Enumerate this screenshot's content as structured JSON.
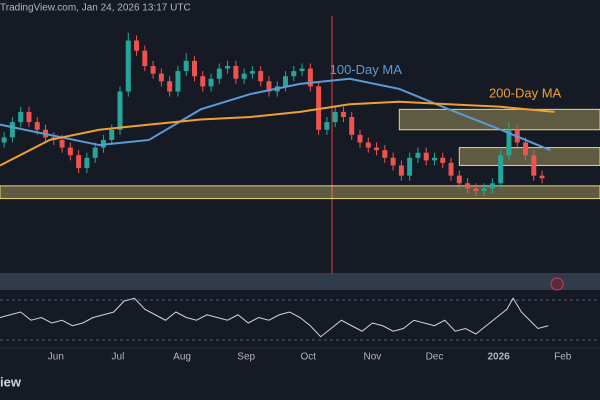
{
  "chart_data": {
    "type": "candlestick",
    "source": "TradingView.com, Jan 24, 2026 13:17 UTC",
    "brand": "iew",
    "xlim": [
      0,
      290
    ],
    "ylim": [
      0,
      100
    ],
    "xticks": [
      {
        "value": 27,
        "label": "Jun"
      },
      {
        "value": 57,
        "label": "Jul"
      },
      {
        "value": 88,
        "label": "Aug"
      },
      {
        "value": 119,
        "label": "Sep"
      },
      {
        "value": 149,
        "label": "Oct"
      },
      {
        "value": 180,
        "label": "Nov"
      },
      {
        "value": 210,
        "label": "Dec"
      },
      {
        "value": 241,
        "label": "2026"
      },
      {
        "value": 272,
        "label": "Feb"
      }
    ],
    "up_color": "#26a69a",
    "down_color": "#ef5350",
    "x": [
      2,
      6,
      10,
      14,
      18,
      22,
      26,
      30,
      34,
      38,
      42,
      46,
      50,
      54,
      58,
      62,
      66,
      70,
      74,
      78,
      82,
      86,
      90,
      94,
      98,
      102,
      106,
      110,
      114,
      118,
      122,
      126,
      130,
      134,
      138,
      142,
      146,
      150,
      154,
      158,
      162,
      166,
      170,
      174,
      178,
      182,
      186,
      190,
      194,
      198,
      202,
      206,
      210,
      214,
      218,
      222,
      226,
      230,
      234,
      238,
      242,
      246,
      250,
      254,
      258,
      262
    ],
    "open": [
      50,
      52,
      58,
      62,
      58,
      55,
      52,
      51,
      48,
      45,
      40,
      44,
      48,
      51,
      55,
      70,
      90,
      86,
      80,
      77,
      74,
      70,
      78,
      82,
      76,
      72,
      75,
      79,
      80,
      75,
      77,
      78,
      74,
      70,
      72,
      76,
      78,
      79,
      72,
      55,
      58,
      62,
      60,
      53,
      50,
      48,
      47,
      44,
      41,
      37,
      44,
      46,
      43,
      44,
      42,
      37,
      34,
      32,
      31,
      32,
      34,
      45,
      55,
      50,
      45,
      37
    ],
    "high": [
      54,
      60,
      64,
      64,
      60,
      57,
      54,
      53,
      50,
      47,
      46,
      50,
      53,
      57,
      72,
      93,
      92,
      88,
      82,
      79,
      76,
      80,
      85,
      84,
      78,
      77,
      81,
      82,
      82,
      79,
      80,
      80,
      76,
      74,
      78,
      80,
      81,
      81,
      74,
      60,
      64,
      64,
      62,
      55,
      52,
      50,
      49,
      46,
      43,
      46,
      48,
      48,
      46,
      46,
      44,
      39,
      36,
      34,
      34,
      36,
      47,
      58,
      57,
      52,
      47,
      39
    ],
    "low": [
      48,
      50,
      56,
      56,
      53,
      50,
      49,
      46,
      43,
      38,
      38,
      42,
      46,
      49,
      53,
      68,
      84,
      78,
      75,
      72,
      68,
      68,
      76,
      74,
      70,
      70,
      73,
      77,
      73,
      73,
      75,
      72,
      68,
      68,
      70,
      74,
      76,
      70,
      53,
      53,
      56,
      58,
      51,
      48,
      46,
      45,
      42,
      39,
      35,
      35,
      42,
      41,
      41,
      40,
      35,
      32,
      30,
      29,
      29,
      30,
      32,
      43,
      48,
      43,
      35,
      34
    ],
    "close": [
      52,
      58,
      62,
      58,
      55,
      52,
      51,
      48,
      45,
      40,
      44,
      48,
      51,
      55,
      70,
      90,
      86,
      80,
      77,
      74,
      70,
      78,
      82,
      76,
      72,
      75,
      79,
      80,
      75,
      77,
      78,
      74,
      70,
      72,
      76,
      78,
      79,
      72,
      55,
      58,
      62,
      60,
      53,
      50,
      48,
      47,
      44,
      41,
      37,
      44,
      46,
      43,
      44,
      42,
      37,
      34,
      32,
      31,
      32,
      34,
      45,
      55,
      50,
      45,
      37,
      36
    ],
    "moving_averages": [
      {
        "name": "100-Day MA",
        "color": "#5b9bd5",
        "x": [
          0,
          24,
          48,
          72,
          97,
          121,
          145,
          169,
          193,
          217,
          242,
          266
        ],
        "values": [
          57,
          53,
          49,
          51,
          63,
          69,
          73,
          75,
          71,
          63,
          55,
          47
        ]
      },
      {
        "name": "200-Day MA",
        "color": "#f0a030",
        "x": [
          0,
          24,
          48,
          72,
          97,
          121,
          145,
          169,
          193,
          217,
          242,
          268
        ],
        "values": [
          41,
          51,
          55,
          57,
          59,
          60,
          62,
          65,
          66,
          65,
          64,
          62
        ]
      }
    ],
    "zones": [
      {
        "x_start": 193,
        "range": [
          55,
          63
        ]
      },
      {
        "x_start": 222,
        "range": [
          41,
          48
        ]
      },
      {
        "x_start": 0,
        "range": [
          28,
          33
        ]
      }
    ],
    "zone_color": "#e8d87a",
    "oscillator": {
      "color": "#d1d4dc",
      "ylim": [
        0,
        100
      ],
      "x": [
        0,
        5,
        10,
        15,
        20,
        25,
        30,
        35,
        40,
        45,
        50,
        55,
        60,
        65,
        70,
        75,
        80,
        85,
        90,
        95,
        100,
        105,
        110,
        115,
        120,
        125,
        130,
        135,
        140,
        145,
        150,
        155,
        160,
        165,
        170,
        175,
        180,
        185,
        190,
        195,
        200,
        205,
        210,
        215,
        220,
        225,
        230,
        235,
        240,
        245,
        248,
        252,
        256,
        260,
        265
      ],
      "values": [
        50,
        55,
        60,
        45,
        50,
        40,
        45,
        35,
        40,
        50,
        55,
        60,
        80,
        85,
        65,
        55,
        45,
        60,
        50,
        45,
        55,
        50,
        45,
        55,
        40,
        50,
        45,
        55,
        60,
        50,
        35,
        15,
        30,
        45,
        35,
        25,
        40,
        35,
        25,
        30,
        45,
        40,
        35,
        45,
        25,
        30,
        20,
        35,
        50,
        65,
        85,
        60,
        45,
        30,
        35
      ]
    }
  }
}
